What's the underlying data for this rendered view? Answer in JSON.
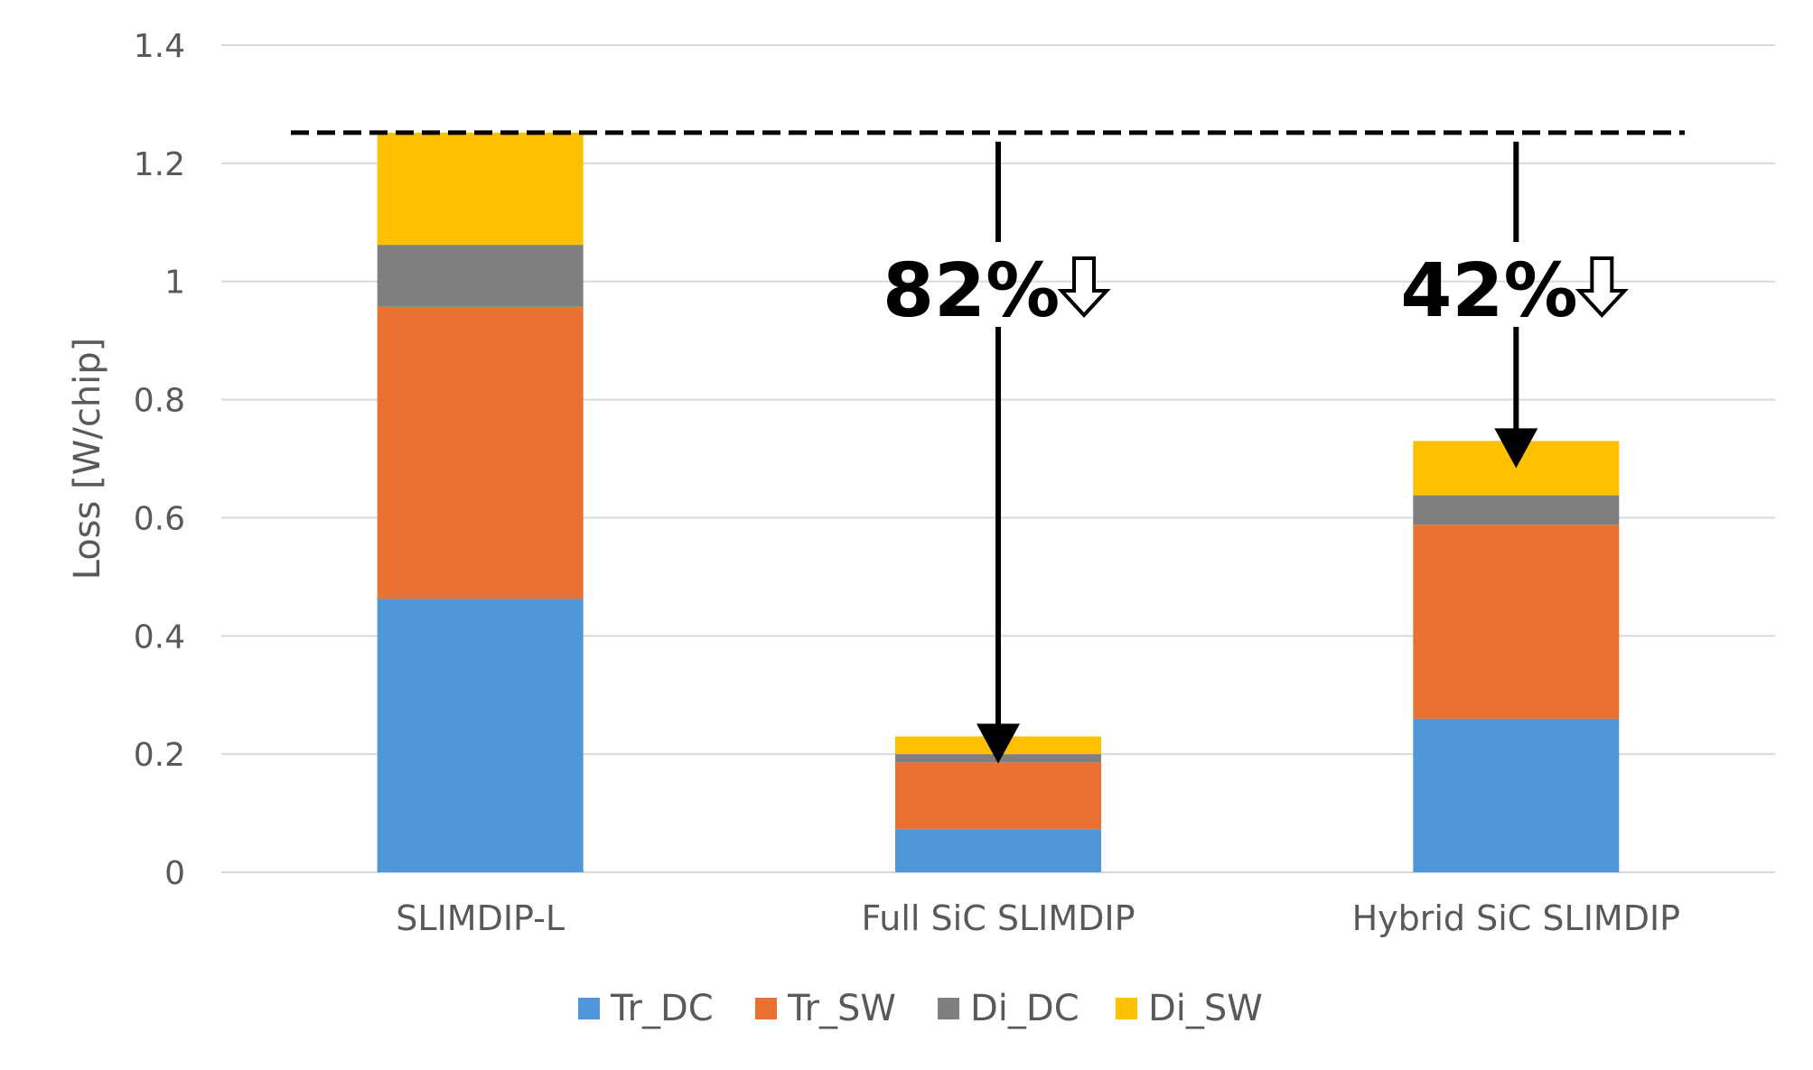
{
  "chart_data": {
    "type": "bar",
    "stacked": true,
    "title": "",
    "xlabel": "",
    "ylabel": "Loss [W/chip]",
    "ylim": [
      0,
      1.4
    ],
    "yticks": [
      0,
      0.2,
      0.4,
      0.6,
      0.8,
      1,
      1.2,
      1.4
    ],
    "ytick_labels": [
      "0",
      "0.2",
      "0.4",
      "0.6",
      "0.8",
      "1",
      "1.2",
      "1.4"
    ],
    "grid": true,
    "legend_position": "bottom",
    "categories": [
      "SLIMDIP-L",
      "Full SiC SLIMDIP",
      "Hybrid SiC SLIMDIP"
    ],
    "series": [
      {
        "name": "Tr_DC",
        "color": "#5097DA",
        "values": [
          0.463,
          0.073,
          0.26
        ]
      },
      {
        "name": "Tr_SW",
        "color": "#E97233",
        "values": [
          0.494,
          0.113,
          0.328
        ]
      },
      {
        "name": "Di_DC",
        "color": "#7F7F7F",
        "values": [
          0.105,
          0.014,
          0.05
        ]
      },
      {
        "name": "Di_SW",
        "color": "#FFC000",
        "values": [
          0.19,
          0.03,
          0.092
        ]
      }
    ],
    "reference_line": {
      "value": 1.252,
      "style": "dashed"
    },
    "annotations": [
      {
        "text": "82%",
        "symbol": "⇩",
        "category": "Full SiC SLIMDIP",
        "arrow_from": 1.252,
        "arrow_to": 0.23
      },
      {
        "text": "42%",
        "symbol": "⇩",
        "category": "Hybrid SiC SLIMDIP",
        "arrow_from": 1.252,
        "arrow_to": 0.73
      }
    ]
  }
}
